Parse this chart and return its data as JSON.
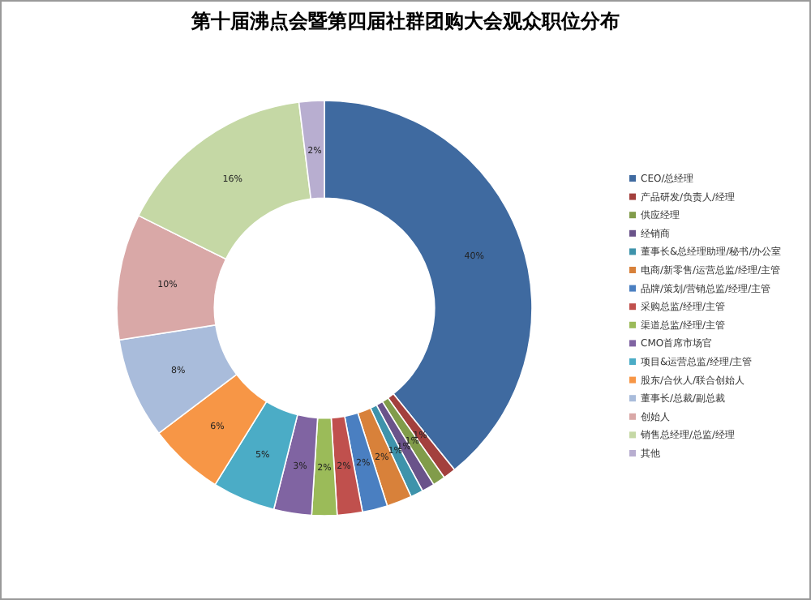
{
  "chart_data": {
    "type": "donut",
    "title": "第十届沸点会暨第四届社群团购大会观众职位分布",
    "categories": [
      "CEO/总经理",
      "产品研发/负责人/经理",
      "供应经理",
      "经销商",
      "董事长&总经理助理/秘书/办公室",
      "电商/新零售/运营总监/经理/主管",
      "品牌/策划/营销总监/经理/主管",
      "采购总监/经理/主管",
      "渠道总监/经理/主管",
      "CMO首席市场官",
      "项目&运营总监/经理/主管",
      "股东/合伙人/联合创始人",
      "董事长/总裁/副总裁",
      "创始人",
      "销售总经理/总监/经理",
      "其他"
    ],
    "values": [
      40,
      1,
      1,
      1,
      1,
      2,
      2,
      2,
      2,
      3,
      5,
      6,
      8,
      10,
      16,
      2
    ],
    "colors": [
      "#3f6aa0",
      "#a3403d",
      "#819c4a",
      "#6a538a",
      "#3e93ab",
      "#d8813a",
      "#4a7fc1",
      "#c0504d",
      "#9bbb59",
      "#8064a2",
      "#4bacc6",
      "#f79646",
      "#a9bcdb",
      "#d9a8a7",
      "#c5d8a5",
      "#b8aed0"
    ],
    "value_labels": [
      "40%",
      "1%",
      "1%",
      "1%",
      "1%",
      "2%",
      "2%",
      "2%",
      "2%",
      "3%",
      "5%",
      "6%",
      "8%",
      "10%",
      "16%",
      "2%"
    ],
    "legend": "right"
  }
}
